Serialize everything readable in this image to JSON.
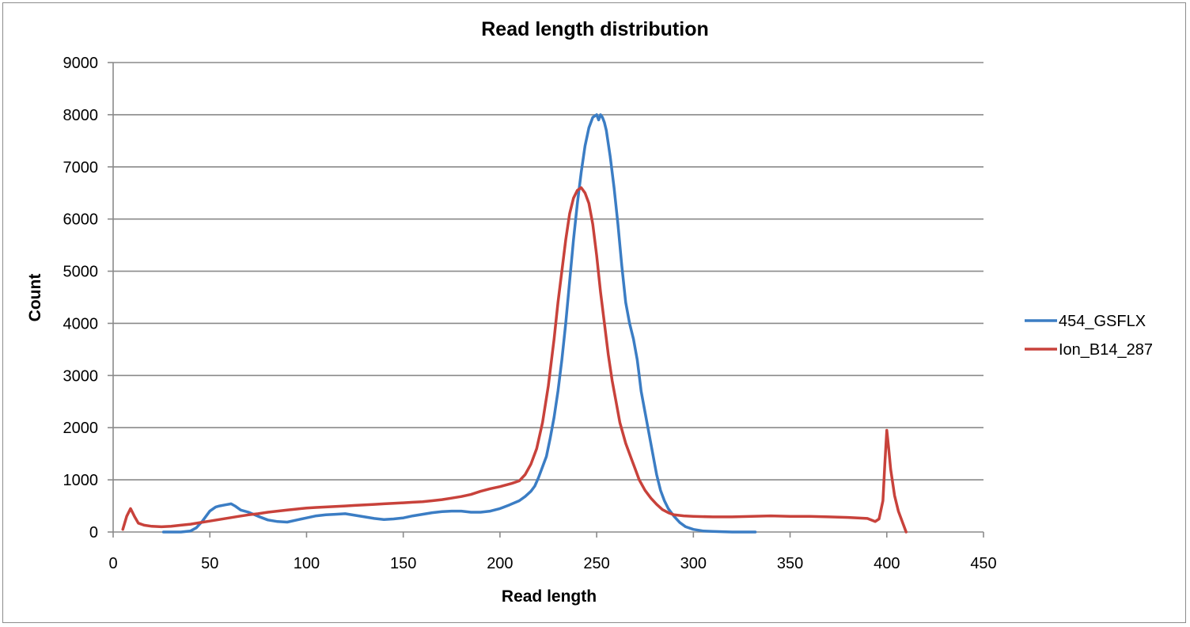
{
  "chart_data": {
    "type": "line",
    "title": "Read length distribution",
    "xlabel": "Read length",
    "ylabel": "Count",
    "xlim": [
      0,
      450
    ],
    "ylim": [
      0,
      9000
    ],
    "xticks": [
      0,
      50,
      100,
      150,
      200,
      250,
      300,
      350,
      400,
      450
    ],
    "yticks": [
      0,
      1000,
      2000,
      3000,
      4000,
      5000,
      6000,
      7000,
      8000,
      9000
    ],
    "grid": "horizontal",
    "legend_position": "right",
    "series": [
      {
        "name": "454_GSFLX",
        "color": "#3b7dc4",
        "x": [
          26,
          35,
          40,
          43,
          46,
          48,
          50,
          53,
          55,
          58,
          61,
          63,
          66,
          70,
          75,
          80,
          85,
          90,
          95,
          100,
          105,
          110,
          115,
          120,
          125,
          130,
          135,
          140,
          145,
          150,
          155,
          160,
          165,
          170,
          175,
          180,
          185,
          190,
          195,
          200,
          205,
          210,
          213,
          216,
          218,
          220,
          222,
          224,
          226,
          228,
          230,
          232,
          234,
          236,
          238,
          240,
          242,
          244,
          246,
          248,
          250,
          251,
          252,
          253,
          254,
          255,
          257,
          259,
          261,
          263,
          265,
          267,
          269,
          271,
          272,
          273,
          275,
          277,
          279,
          281,
          283,
          285,
          287,
          290,
          293,
          296,
          300,
          305,
          310,
          320,
          332
        ],
        "y": [
          0,
          0,
          20,
          80,
          200,
          300,
          400,
          480,
          500,
          520,
          540,
          500,
          420,
          380,
          300,
          230,
          200,
          190,
          230,
          270,
          310,
          330,
          340,
          350,
          320,
          290,
          260,
          240,
          250,
          270,
          310,
          340,
          370,
          390,
          400,
          400,
          380,
          380,
          400,
          450,
          520,
          600,
          680,
          780,
          880,
          1050,
          1250,
          1450,
          1800,
          2200,
          2700,
          3300,
          4000,
          4800,
          5600,
          6300,
          6900,
          7400,
          7750,
          7950,
          8000,
          7900,
          8000,
          7950,
          7850,
          7700,
          7200,
          6600,
          5900,
          5100,
          4400,
          4000,
          3700,
          3300,
          3000,
          2700,
          2300,
          1900,
          1500,
          1100,
          800,
          600,
          450,
          300,
          180,
          100,
          50,
          20,
          10,
          0,
          0
        ]
      },
      {
        "name": "Ion_B14_287",
        "color": "#c8423b",
        "x": [
          5,
          7,
          9,
          11,
          13,
          16,
          20,
          25,
          30,
          35,
          40,
          45,
          50,
          55,
          60,
          65,
          70,
          75,
          80,
          85,
          90,
          95,
          100,
          105,
          110,
          115,
          120,
          125,
          130,
          135,
          140,
          145,
          150,
          155,
          160,
          165,
          170,
          175,
          180,
          185,
          190,
          195,
          200,
          203,
          206,
          210,
          213,
          216,
          219,
          222,
          225,
          228,
          230,
          232,
          234,
          236,
          238,
          240,
          242,
          244,
          246,
          248,
          250,
          252,
          254,
          256,
          258,
          260,
          262,
          265,
          268,
          270,
          272,
          275,
          278,
          281,
          284,
          287,
          290,
          295,
          300,
          310,
          320,
          330,
          340,
          350,
          360,
          370,
          380,
          390,
          394,
          396,
          398,
          399,
          400,
          401,
          402,
          404,
          406,
          408,
          410
        ],
        "y": [
          50,
          300,
          450,
          300,
          170,
          130,
          110,
          100,
          110,
          130,
          150,
          180,
          210,
          240,
          270,
          300,
          330,
          350,
          380,
          400,
          420,
          440,
          460,
          470,
          480,
          490,
          500,
          510,
          520,
          530,
          540,
          550,
          560,
          570,
          580,
          600,
          620,
          650,
          680,
          720,
          780,
          830,
          870,
          900,
          930,
          980,
          1100,
          1300,
          1600,
          2100,
          2800,
          3700,
          4400,
          5000,
          5600,
          6100,
          6400,
          6550,
          6600,
          6500,
          6300,
          5900,
          5300,
          4600,
          4000,
          3400,
          2900,
          2500,
          2100,
          1700,
          1400,
          1200,
          1000,
          800,
          650,
          530,
          430,
          370,
          330,
          310,
          300,
          290,
          290,
          300,
          310,
          300,
          300,
          290,
          280,
          260,
          200,
          250,
          600,
          1300,
          1950,
          1600,
          1200,
          700,
          400,
          200,
          0
        ]
      }
    ]
  }
}
